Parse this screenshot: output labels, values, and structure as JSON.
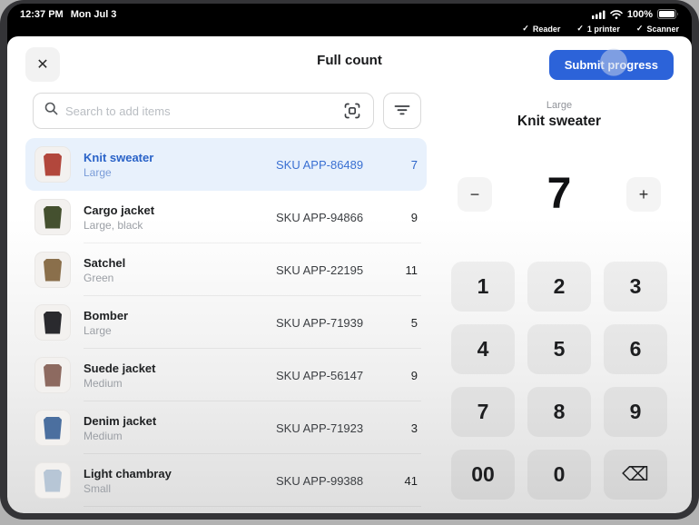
{
  "status_bar": {
    "time": "12:37 PM",
    "date": "Mon Jul 3",
    "battery": "100%"
  },
  "device_bar": {
    "items": [
      {
        "label": "Reader"
      },
      {
        "label": "1 printer"
      },
      {
        "label": "Scanner"
      }
    ]
  },
  "header": {
    "title": "Full count",
    "submit_label": "Submit progress"
  },
  "search": {
    "placeholder": "Search to add items"
  },
  "items": [
    {
      "name": "Knit sweater",
      "variant": "Large",
      "sku": "SKU APP-86489",
      "count": "7",
      "selected": true,
      "thumb_color": "#b2473c"
    },
    {
      "name": "Cargo jacket",
      "variant": "Large, black",
      "sku": "SKU APP-94866",
      "count": "9",
      "selected": false,
      "thumb_color": "#44502f"
    },
    {
      "name": "Satchel",
      "variant": "Green",
      "sku": "SKU APP-22195",
      "count": "11",
      "selected": false,
      "thumb_color": "#8a6f4b"
    },
    {
      "name": "Bomber",
      "variant": "Large",
      "sku": "SKU APP-71939",
      "count": "5",
      "selected": false,
      "thumb_color": "#2a2a2e"
    },
    {
      "name": "Suede jacket",
      "variant": "Medium",
      "sku": "SKU APP-56147",
      "count": "9",
      "selected": false,
      "thumb_color": "#8d6a60"
    },
    {
      "name": "Denim jacket",
      "variant": "Medium",
      "sku": "SKU APP-71923",
      "count": "3",
      "selected": false,
      "thumb_color": "#4b6f9f"
    },
    {
      "name": "Light chambray",
      "variant": "Small",
      "sku": "SKU APP-99388",
      "count": "41",
      "selected": false,
      "thumb_color": "#b7c6d6"
    }
  ],
  "detail": {
    "variant": "Large",
    "name": "Knit sweater",
    "quantity": "7"
  },
  "keypad": {
    "keys": [
      "1",
      "2",
      "3",
      "4",
      "5",
      "6",
      "7",
      "8",
      "9",
      "00",
      "0",
      "⌫"
    ]
  },
  "icons": {
    "close": "✕",
    "minus": "−",
    "plus": "+",
    "check": "✓"
  },
  "colors": {
    "accent_blue": "#2c63d9",
    "selected_row_bg": "#e8f1fc",
    "selected_text": "#2a63c8",
    "frame": "#343437"
  }
}
